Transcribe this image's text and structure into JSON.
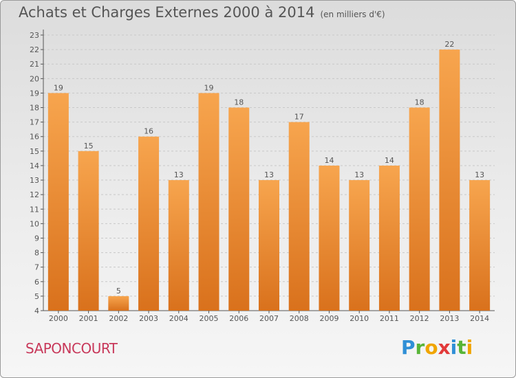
{
  "title": "Achats et Charges Externes 2000 à 2014",
  "subtitle": "(en milliers d'€)",
  "commune": "SAPONCOURT",
  "logo": {
    "letters": [
      "P",
      "r",
      "o",
      "x",
      "i",
      "t",
      "i"
    ],
    "colors": [
      "#2f8fd6",
      "#58b538",
      "#f0a500",
      "#e23a3a",
      "#2f8fd6",
      "#58b538",
      "#f0a500"
    ]
  },
  "colors": {
    "bar_top": "#f7a54e",
    "bar_bottom": "#d9711c",
    "axis": "#555555",
    "grid": "#c8c8c8",
    "title_text": "#555555",
    "commune_text": "#c8385a"
  },
  "chart_data": {
    "type": "bar",
    "title": "Achats et Charges Externes 2000 à 2014",
    "subtitle": "(en milliers d'€)",
    "categories": [
      "2000",
      "2001",
      "2002",
      "2003",
      "2004",
      "2005",
      "2006",
      "2007",
      "2008",
      "2009",
      "2010",
      "2011",
      "2012",
      "2013",
      "2014"
    ],
    "values": [
      19,
      15,
      5,
      16,
      13,
      19,
      18,
      13,
      17,
      14,
      13,
      14,
      18,
      22,
      13
    ],
    "ylim": [
      4,
      23
    ],
    "yticks": [
      4,
      5,
      6,
      7,
      8,
      9,
      10,
      11,
      12,
      13,
      14,
      15,
      16,
      17,
      18,
      19,
      20,
      21,
      22,
      23
    ],
    "grid": true,
    "xlabel": "",
    "ylabel": ""
  }
}
